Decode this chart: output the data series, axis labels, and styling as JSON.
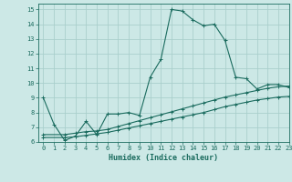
{
  "title": "",
  "xlabel": "Humidex (Indice chaleur)",
  "background_color": "#cce8e6",
  "grid_color": "#aacfcc",
  "line_color": "#1a6b5e",
  "xlim": [
    -0.5,
    23
  ],
  "ylim": [
    6,
    15.4
  ],
  "xticks": [
    0,
    1,
    2,
    3,
    4,
    5,
    6,
    7,
    8,
    9,
    10,
    11,
    12,
    13,
    14,
    15,
    16,
    17,
    18,
    19,
    20,
    21,
    22,
    23
  ],
  "yticks": [
    6,
    7,
    8,
    9,
    10,
    11,
    12,
    13,
    14,
    15
  ],
  "curve1_x": [
    0,
    1,
    2,
    3,
    4,
    5,
    6,
    7,
    8,
    9,
    10,
    11,
    12,
    13,
    14,
    15,
    16,
    17,
    18,
    19,
    20,
    21,
    22,
    23
  ],
  "curve1_y": [
    9.0,
    7.2,
    6.1,
    6.4,
    7.4,
    6.5,
    7.9,
    7.9,
    8.0,
    7.8,
    10.4,
    11.6,
    15.0,
    14.9,
    14.3,
    13.9,
    14.0,
    12.9,
    10.4,
    10.3,
    9.6,
    9.9,
    9.9,
    9.7
  ],
  "curve2_x": [
    0,
    2,
    3,
    4,
    5,
    6,
    7,
    8,
    9,
    10,
    11,
    12,
    13,
    14,
    15,
    16,
    17,
    18,
    19,
    20,
    21,
    22,
    23
  ],
  "curve2_y": [
    6.5,
    6.5,
    6.6,
    6.7,
    6.75,
    6.85,
    7.05,
    7.25,
    7.45,
    7.65,
    7.85,
    8.05,
    8.25,
    8.45,
    8.65,
    8.85,
    9.05,
    9.2,
    9.35,
    9.5,
    9.65,
    9.75,
    9.8
  ],
  "curve3_x": [
    0,
    2,
    3,
    4,
    5,
    6,
    7,
    8,
    9,
    10,
    11,
    12,
    13,
    14,
    15,
    16,
    17,
    18,
    19,
    20,
    21,
    22,
    23
  ],
  "curve3_y": [
    6.3,
    6.3,
    6.35,
    6.45,
    6.55,
    6.65,
    6.8,
    6.95,
    7.1,
    7.25,
    7.4,
    7.55,
    7.7,
    7.85,
    8.0,
    8.2,
    8.4,
    8.55,
    8.7,
    8.85,
    8.95,
    9.05,
    9.1
  ]
}
